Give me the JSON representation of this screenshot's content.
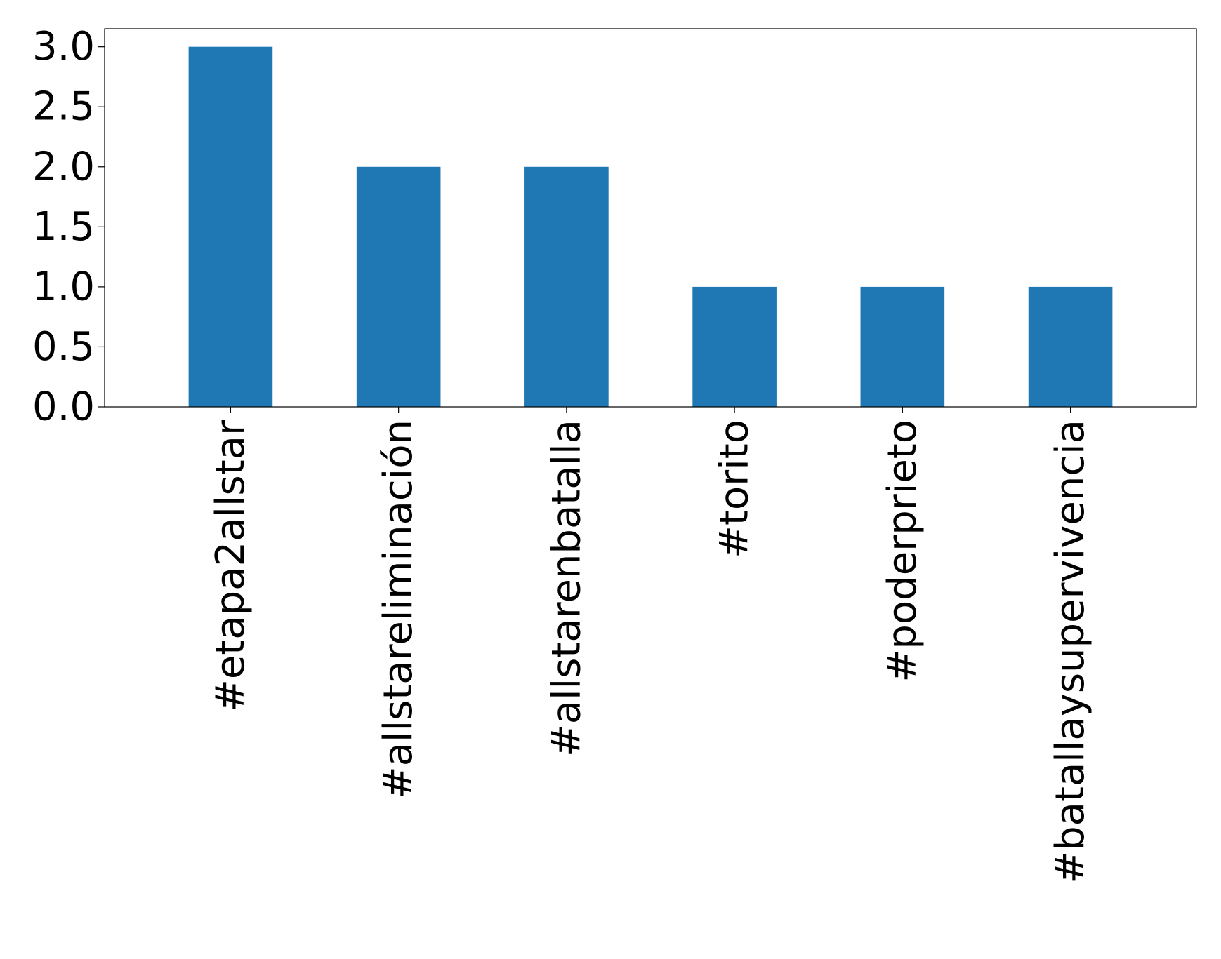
{
  "chart_data": {
    "type": "bar",
    "title": "",
    "xlabel": "",
    "ylabel": "",
    "categories": [
      "#etapa2allstar",
      "#allstareliminación",
      "#allstarenbatalla",
      "#torito",
      "#poderprieto",
      "#batallaysupervivencia"
    ],
    "values": [
      3,
      2,
      2,
      1,
      1,
      1
    ],
    "ylim": [
      0,
      3.15
    ],
    "yticks": [
      "0.0",
      "0.5",
      "1.0",
      "1.5",
      "2.0",
      "2.5",
      "3.0"
    ],
    "bar_color": "#1f77b4",
    "grid": false,
    "legend": "none"
  }
}
